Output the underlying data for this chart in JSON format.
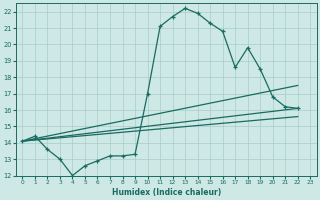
{
  "xlabel": "Humidex (Indice chaleur)",
  "bg_color": "#cde8e5",
  "grid_color": "#a8ceca",
  "line_color": "#1a6b60",
  "xlim": [
    -0.5,
    23.5
  ],
  "ylim": [
    12,
    22.5
  ],
  "xticks": [
    0,
    1,
    2,
    3,
    4,
    5,
    6,
    7,
    8,
    9,
    10,
    11,
    12,
    13,
    14,
    15,
    16,
    17,
    18,
    19,
    20,
    21,
    22,
    23
  ],
  "yticks": [
    12,
    13,
    14,
    15,
    16,
    17,
    18,
    19,
    20,
    21,
    22
  ],
  "line1_x": [
    0,
    1,
    2,
    3,
    4,
    5,
    6,
    7,
    8,
    9,
    10,
    11,
    12,
    13,
    14,
    15,
    16,
    17,
    18,
    19,
    20,
    21,
    22
  ],
  "line1_y": [
    14.1,
    14.4,
    13.6,
    13.0,
    12.0,
    12.6,
    12.9,
    13.2,
    13.2,
    13.3,
    17.0,
    21.1,
    21.7,
    22.2,
    21.9,
    21.3,
    20.8,
    18.6,
    19.8,
    18.5,
    16.8,
    16.2,
    16.1
  ],
  "line2_x": [
    0,
    22
  ],
  "line2_y": [
    14.1,
    17.5
  ],
  "line3_x": [
    0,
    22
  ],
  "line3_y": [
    14.1,
    16.1
  ],
  "line4_x": [
    0,
    22
  ],
  "line4_y": [
    14.1,
    15.6
  ]
}
